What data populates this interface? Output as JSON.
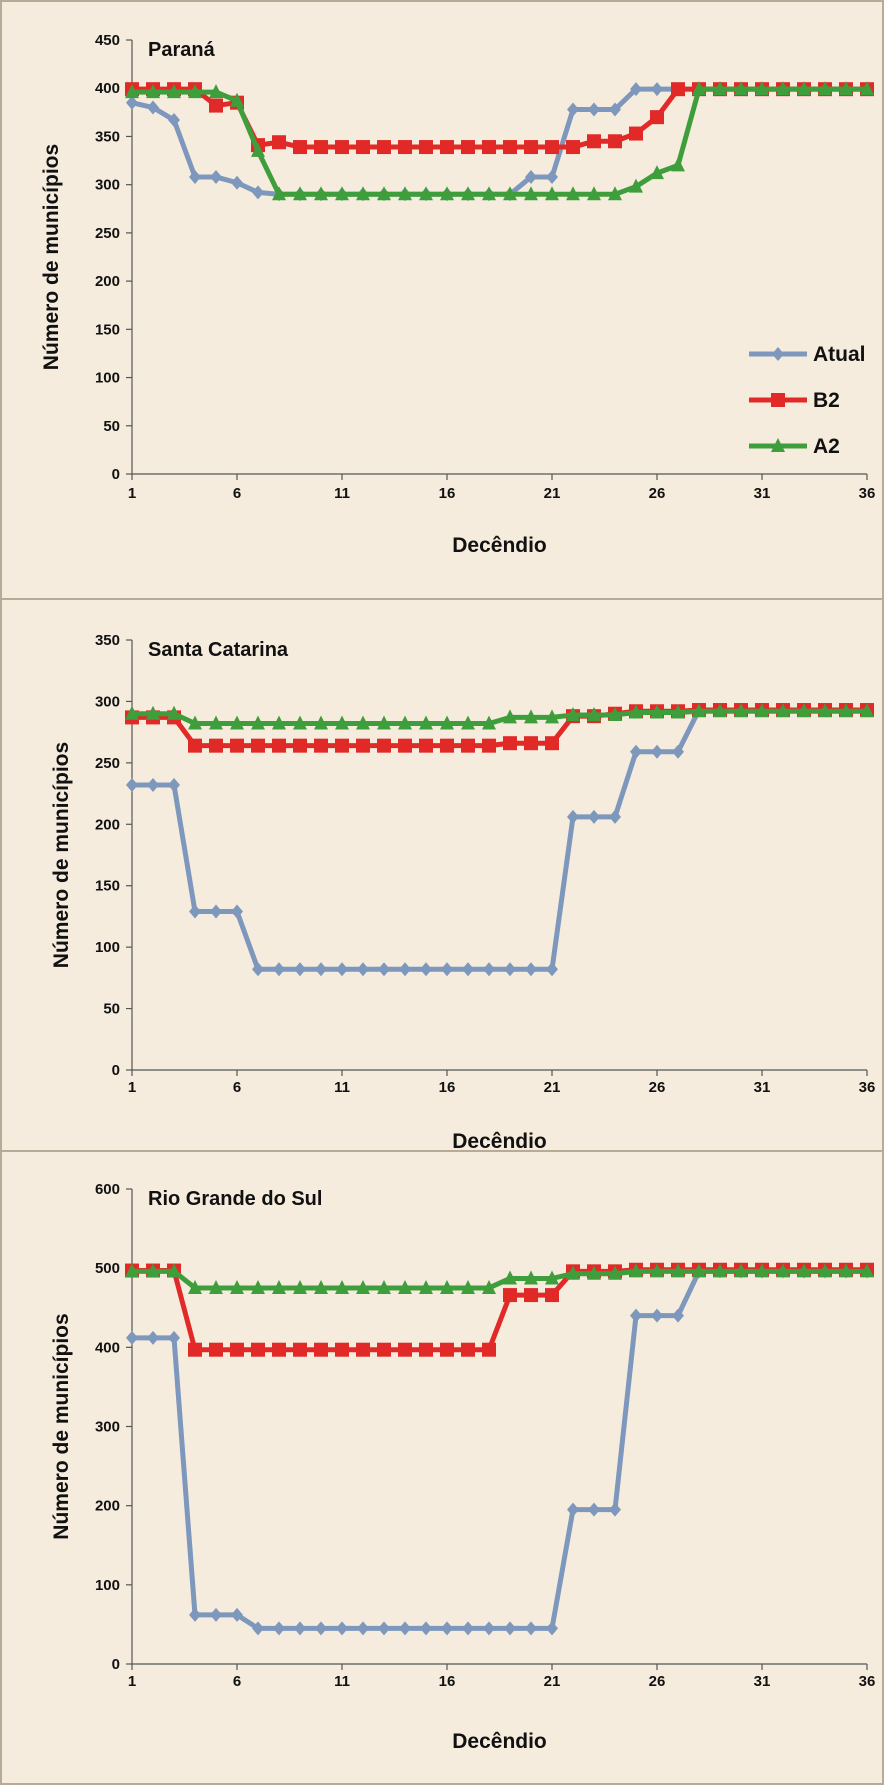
{
  "chart_data": [
    {
      "type": "line",
      "title": "Paraná",
      "xlabel": "Decêndio",
      "ylabel": "Número de municípios",
      "ylim": [
        0,
        450
      ],
      "yticks": [
        0,
        50,
        100,
        150,
        200,
        250,
        300,
        350,
        400,
        450
      ],
      "xlim": [
        1,
        36
      ],
      "xticks": [
        1,
        6,
        11,
        16,
        21,
        26,
        31,
        36
      ],
      "legend": "right",
      "x": [
        1,
        2,
        3,
        4,
        5,
        6,
        7,
        8,
        9,
        10,
        11,
        12,
        13,
        14,
        15,
        16,
        17,
        18,
        19,
        20,
        21,
        22,
        23,
        24,
        25,
        26,
        27,
        28,
        29,
        30,
        31,
        32,
        33,
        34,
        35,
        36
      ],
      "series": [
        {
          "name": "Atual",
          "color": "#7d97bd",
          "marker": "diamond",
          "values": [
            385,
            380,
            367,
            308,
            308,
            302,
            292,
            290,
            290,
            290,
            290,
            290,
            290,
            290,
            290,
            290,
            290,
            290,
            290,
            308,
            308,
            378,
            378,
            378,
            399,
            399,
            399,
            399,
            399,
            399,
            399,
            399,
            399,
            399,
            399,
            399
          ]
        },
        {
          "name": "B2",
          "color": "#e12a28",
          "marker": "square",
          "values": [
            399,
            399,
            399,
            399,
            382,
            385,
            341,
            344,
            339,
            339,
            339,
            339,
            339,
            339,
            339,
            339,
            339,
            339,
            339,
            339,
            339,
            339,
            345,
            345,
            353,
            370,
            399,
            399,
            399,
            399,
            399,
            399,
            399,
            399,
            399,
            399
          ]
        },
        {
          "name": "A2",
          "color": "#3f9e3c",
          "marker": "triangle",
          "values": [
            396,
            396,
            396,
            396,
            396,
            387,
            335,
            290,
            290,
            290,
            290,
            290,
            290,
            290,
            290,
            290,
            290,
            290,
            290,
            290,
            290,
            290,
            290,
            290,
            298,
            312,
            320,
            399,
            399,
            399,
            399,
            399,
            399,
            399,
            399,
            399
          ]
        }
      ]
    },
    {
      "type": "line",
      "title": "Santa Catarina",
      "xlabel": "Decêndio",
      "ylabel": "Número de municípios",
      "ylim": [
        0,
        350
      ],
      "yticks": [
        0,
        50,
        100,
        150,
        200,
        250,
        300,
        350
      ],
      "xlim": [
        1,
        36
      ],
      "xticks": [
        1,
        6,
        11,
        16,
        21,
        26,
        31,
        36
      ],
      "x": [
        1,
        2,
        3,
        4,
        5,
        6,
        7,
        8,
        9,
        10,
        11,
        12,
        13,
        14,
        15,
        16,
        17,
        18,
        19,
        20,
        21,
        22,
        23,
        24,
        25,
        26,
        27,
        28,
        29,
        30,
        31,
        32,
        33,
        34,
        35,
        36
      ],
      "series": [
        {
          "name": "Atual",
          "color": "#7d97bd",
          "marker": "diamond",
          "values": [
            232,
            232,
            232,
            129,
            129,
            129,
            82,
            82,
            82,
            82,
            82,
            82,
            82,
            82,
            82,
            82,
            82,
            82,
            82,
            82,
            82,
            206,
            206,
            206,
            259,
            259,
            259,
            293,
            293,
            293,
            293,
            293,
            293,
            293,
            293,
            293
          ]
        },
        {
          "name": "B2",
          "color": "#e12a28",
          "marker": "square",
          "values": [
            287,
            287,
            287,
            264,
            264,
            264,
            264,
            264,
            264,
            264,
            264,
            264,
            264,
            264,
            264,
            264,
            264,
            264,
            266,
            266,
            266,
            288,
            288,
            290,
            292,
            292,
            292,
            293,
            293,
            293,
            293,
            293,
            293,
            293,
            293,
            293
          ]
        },
        {
          "name": "A2",
          "color": "#3f9e3c",
          "marker": "triangle",
          "values": [
            290,
            290,
            290,
            282,
            282,
            282,
            282,
            282,
            282,
            282,
            282,
            282,
            282,
            282,
            282,
            282,
            282,
            282,
            287,
            287,
            287,
            289,
            289,
            289,
            291,
            291,
            291,
            292,
            292,
            292,
            292,
            292,
            292,
            292,
            292,
            292
          ]
        }
      ]
    },
    {
      "type": "line",
      "title": "Rio Grande do Sul",
      "xlabel": "Decêndio",
      "ylabel": "Número de municípios",
      "ylim": [
        0,
        600
      ],
      "yticks": [
        0,
        100,
        200,
        300,
        400,
        500,
        600
      ],
      "xlim": [
        1,
        36
      ],
      "xticks": [
        1,
        6,
        11,
        16,
        21,
        26,
        31,
        36
      ],
      "x": [
        1,
        2,
        3,
        4,
        5,
        6,
        7,
        8,
        9,
        10,
        11,
        12,
        13,
        14,
        15,
        16,
        17,
        18,
        19,
        20,
        21,
        22,
        23,
        24,
        25,
        26,
        27,
        28,
        29,
        30,
        31,
        32,
        33,
        34,
        35,
        36
      ],
      "series": [
        {
          "name": "Atual",
          "color": "#7d97bd",
          "marker": "diamond",
          "values": [
            412,
            412,
            412,
            62,
            62,
            62,
            45,
            45,
            45,
            45,
            45,
            45,
            45,
            45,
            45,
            45,
            45,
            45,
            45,
            45,
            45,
            195,
            195,
            195,
            440,
            440,
            440,
            496,
            496,
            496,
            496,
            496,
            496,
            496,
            496,
            496
          ]
        },
        {
          "name": "B2",
          "color": "#e12a28",
          "marker": "square",
          "values": [
            497,
            497,
            497,
            397,
            397,
            397,
            397,
            397,
            397,
            397,
            397,
            397,
            397,
            397,
            397,
            397,
            397,
            397,
            466,
            466,
            466,
            496,
            496,
            496,
            498,
            498,
            498,
            498,
            498,
            498,
            498,
            498,
            498,
            498,
            498,
            498
          ]
        },
        {
          "name": "A2",
          "color": "#3f9e3c",
          "marker": "triangle",
          "values": [
            496,
            496,
            496,
            475,
            475,
            475,
            475,
            475,
            475,
            475,
            475,
            475,
            475,
            475,
            475,
            475,
            475,
            475,
            487,
            487,
            487,
            493,
            493,
            493,
            496,
            496,
            496,
            496,
            496,
            496,
            496,
            496,
            496,
            496,
            496,
            496
          ]
        }
      ]
    }
  ]
}
